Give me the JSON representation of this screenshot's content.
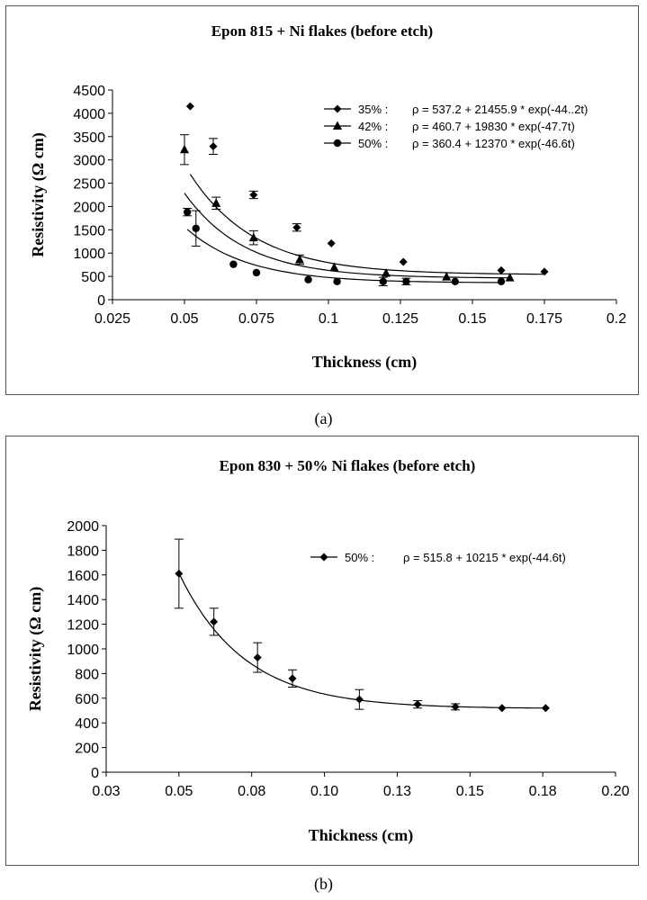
{
  "chart_data": [
    {
      "type": "scatter",
      "title": "Epon 815 + Ni flakes (before etch)",
      "xlabel": "Thickness (cm)",
      "ylabel": "Resistivity (Ω cm)",
      "xlim": [
        0.025,
        0.2
      ],
      "ylim": [
        0,
        4500
      ],
      "xticks": [
        "0.025",
        "0.05",
        "0.075",
        "0.1",
        "0.125",
        "0.15",
        "0.175",
        "0.2"
      ],
      "yticks": [
        "0",
        "500",
        "1000",
        "1500",
        "2000",
        "2500",
        "3000",
        "3500",
        "4000",
        "4500"
      ],
      "legend_position": "top-right",
      "series": [
        {
          "name": "35% :",
          "marker": "diamond",
          "equation": "ρ = 537.2 + 21455.9 * exp(-44..2t)",
          "fit": {
            "a": 537.2,
            "b": 21455.9,
            "k": 44.2
          },
          "x": [
            0.052,
            0.06,
            0.074,
            0.089,
            0.101,
            0.126,
            0.16,
            0.175
          ],
          "y": [
            4150,
            3290,
            2250,
            1550,
            1210,
            810,
            630,
            600
          ],
          "err": [
            0,
            170,
            80,
            80,
            0,
            0,
            0,
            0
          ]
        },
        {
          "name": "42% :",
          "marker": "triangle",
          "equation": "ρ = 460.7 + 19830 * exp(-47.7t)",
          "fit": {
            "a": 460.7,
            "b": 19830,
            "k": 47.7
          },
          "x": [
            0.05,
            0.061,
            0.074,
            0.09,
            0.102,
            0.12,
            0.141,
            0.163
          ],
          "y": [
            3220,
            2070,
            1330,
            860,
            690,
            570,
            490,
            470
          ],
          "err": [
            320,
            130,
            150,
            100,
            0,
            0,
            0,
            0
          ]
        },
        {
          "name": "50% :",
          "marker": "circle",
          "equation": "ρ = 360.4 + 12370 * exp(-46.6t)",
          "fit": {
            "a": 360.4,
            "b": 12370,
            "k": 46.6
          },
          "x": [
            0.051,
            0.054,
            0.067,
            0.075,
            0.093,
            0.103,
            0.119,
            0.127,
            0.144,
            0.16
          ],
          "y": [
            1880,
            1530,
            760,
            580,
            430,
            390,
            390,
            390,
            390,
            390
          ],
          "err": [
            80,
            380,
            0,
            0,
            0,
            0,
            90,
            70,
            0,
            0
          ]
        }
      ]
    },
    {
      "type": "scatter",
      "title": "Epon 830 + 50% Ni flakes (before etch)",
      "xlabel": "Thickness (cm)",
      "ylabel": "Resistivity (Ω cm)",
      "xlim": [
        0.025,
        0.2
      ],
      "ylim": [
        0,
        2000
      ],
      "xticks": [
        "0.03",
        "0.05",
        "0.08",
        "0.10",
        "0.13",
        "0.15",
        "0.18",
        "0.20"
      ],
      "yticks": [
        "0",
        "200",
        "400",
        "600",
        "800",
        "1000",
        "1200",
        "1400",
        "1600",
        "1800",
        "2000"
      ],
      "legend_position": "top-right",
      "series": [
        {
          "name": "50% :",
          "marker": "diamond",
          "equation": "ρ = 515.8 + 10215 * exp(-44.6t)",
          "fit": {
            "a": 515.8,
            "b": 10215,
            "k": 44.6
          },
          "x": [
            0.05,
            0.062,
            0.077,
            0.089,
            0.112,
            0.132,
            0.145,
            0.161,
            0.176
          ],
          "y": [
            1610,
            1220,
            930,
            760,
            590,
            550,
            530,
            520,
            520
          ],
          "err": [
            280,
            110,
            120,
            70,
            80,
            30,
            25,
            0,
            0
          ]
        }
      ]
    }
  ],
  "captions": {
    "a": "(a)",
    "b": "(b)"
  }
}
